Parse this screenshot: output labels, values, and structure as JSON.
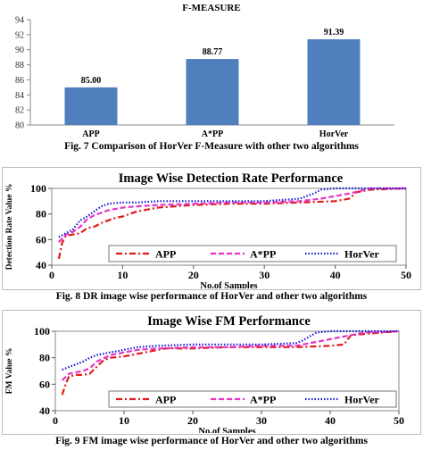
{
  "captions": {
    "fig7": "Fig. 7 Comparison of HorVer F-Measure with other two algorithms",
    "fig8": "Fig. 8 DR image wise performance of HorVer and other two algorithms",
    "fig9": "Fig. 9 FM image wise performance of HorVer and other two algorithms"
  },
  "colors": {
    "bar": "#4f7fbd",
    "app": "#e01b1b",
    "app_star_pp": "#e633c8",
    "horver": "#1a1ad6",
    "grid": "#d9d9d9"
  },
  "chart_data": [
    {
      "type": "bar",
      "title": "F-MEASURE",
      "categories": [
        "APP",
        "A*PP",
        "HorVer"
      ],
      "values": [
        85.0,
        88.77,
        91.39
      ],
      "value_labels": [
        "85.00",
        "88.77",
        "91.39"
      ],
      "ylim": [
        80,
        94
      ],
      "yticks": [
        80,
        82,
        84,
        86,
        88,
        90,
        92,
        94
      ],
      "grid": false,
      "xlabel": "",
      "ylabel": ""
    },
    {
      "type": "line",
      "title": "Image Wise Detection Rate  Performance",
      "xlabel": "No.of Samples",
      "ylabel": "Detection Rate Value %",
      "xlim": [
        0,
        50
      ],
      "ylim": [
        40,
        100
      ],
      "xticks": [
        0,
        10,
        20,
        30,
        40,
        50
      ],
      "yticks": [
        40,
        60,
        80,
        100
      ],
      "grid": false,
      "legend_position": "bottom",
      "series": [
        {
          "name": "APP",
          "style": "dash-dot",
          "x": [
            1,
            1.5,
            2,
            3,
            4,
            5,
            6,
            7,
            8,
            9,
            10,
            12,
            15,
            20,
            25,
            30,
            35,
            40,
            42,
            43,
            45,
            50
          ],
          "y": [
            45,
            58,
            63,
            64,
            65,
            69,
            70,
            73,
            75,
            77,
            78,
            82,
            85,
            87,
            88,
            88,
            89,
            90,
            92,
            97,
            99,
            100
          ]
        },
        {
          "name": "A*PP",
          "style": "dash",
          "x": [
            1,
            2,
            3,
            4,
            5,
            6,
            7,
            8,
            10,
            12,
            15,
            20,
            25,
            30,
            35,
            38,
            40,
            42,
            45,
            50
          ],
          "y": [
            58,
            64,
            66,
            70,
            76,
            79,
            81,
            83,
            85,
            86,
            87,
            88,
            89,
            89,
            90,
            92,
            94,
            96,
            100,
            100
          ]
        },
        {
          "name": "HorVer",
          "style": "dot",
          "x": [
            1,
            2,
            3,
            4,
            5,
            6,
            7,
            8,
            10,
            12,
            15,
            20,
            25,
            30,
            35,
            37,
            38,
            40,
            45,
            50
          ],
          "y": [
            62,
            65,
            68,
            75,
            78,
            82,
            86,
            88,
            89,
            89,
            90,
            90,
            90,
            90,
            92,
            96,
            99,
            100,
            100,
            100
          ]
        }
      ]
    },
    {
      "type": "line",
      "title": "Image Wise FM  Performance",
      "xlabel": "No.of Samples",
      "ylabel": "FM Value %",
      "xlim": [
        0,
        50
      ],
      "ylim": [
        40,
        100
      ],
      "xticks": [
        0,
        10,
        20,
        30,
        40,
        50
      ],
      "yticks": [
        40,
        60,
        80,
        100
      ],
      "grid": false,
      "legend_position": "bottom",
      "series": [
        {
          "name": "APP",
          "style": "dash-dot",
          "x": [
            1,
            1.5,
            2,
            3,
            4,
            5,
            6,
            7,
            8,
            10,
            12,
            15,
            16,
            20,
            25,
            30,
            35,
            40,
            42,
            43,
            45,
            50
          ],
          "y": [
            52,
            60,
            66,
            67,
            67,
            68,
            73,
            78,
            80,
            81,
            83,
            86,
            87,
            87,
            88,
            88,
            88,
            89,
            90,
            97,
            98,
            100
          ]
        },
        {
          "name": "A*PP",
          "style": "dash",
          "x": [
            1,
            2,
            3,
            4,
            5,
            6,
            8,
            10,
            12,
            15,
            20,
            25,
            30,
            35,
            38,
            40,
            42,
            45,
            50
          ],
          "y": [
            63,
            68,
            69,
            70,
            72,
            77,
            82,
            84,
            86,
            87,
            88,
            88,
            89,
            89,
            92,
            94,
            96,
            99,
            100
          ]
        },
        {
          "name": "HorVer",
          "style": "dot",
          "x": [
            1,
            2,
            3,
            4,
            5,
            6,
            8,
            10,
            12,
            15,
            20,
            25,
            30,
            35,
            36,
            37,
            38,
            40,
            45,
            50
          ],
          "y": [
            71,
            73,
            75,
            77,
            80,
            82,
            84,
            86,
            88,
            89,
            90,
            90,
            90,
            91,
            93,
            96,
            99,
            100,
            100,
            100
          ]
        }
      ]
    }
  ]
}
